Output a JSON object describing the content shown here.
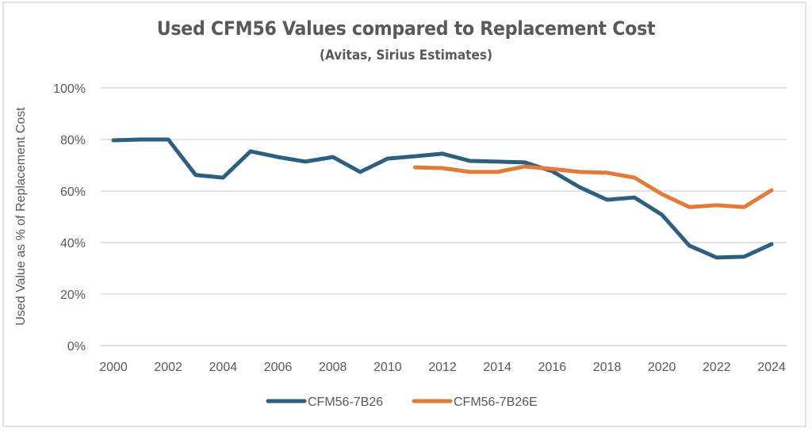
{
  "chart_data": {
    "type": "line",
    "title": "Used CFM56 Values compared to Replacement Cost",
    "subtitle": "(Avitas, Sirius Estimates)",
    "xlabel": "",
    "ylabel": "Used Value as % of Replacement Cost",
    "ylim": [
      0,
      100
    ],
    "y_ticks": [
      0,
      20,
      40,
      60,
      80,
      100
    ],
    "y_tick_labels": [
      "0%",
      "20%",
      "40%",
      "60%",
      "80%",
      "100%"
    ],
    "xlim": [
      2000,
      2024
    ],
    "x_ticks": [
      2000,
      2002,
      2004,
      2006,
      2008,
      2010,
      2012,
      2014,
      2016,
      2018,
      2020,
      2022,
      2024
    ],
    "x_tick_labels": [
      "2000",
      "2002",
      "2004",
      "2006",
      "2008",
      "2010",
      "2012",
      "2014",
      "2016",
      "2018",
      "2020",
      "2022",
      "2024"
    ],
    "grid": "horizontal",
    "legend_position": "bottom",
    "series": [
      {
        "name": "CFM56-7B26",
        "color": "#2e5f80",
        "x": [
          2000,
          2001,
          2002,
          2003,
          2004,
          2005,
          2006,
          2007,
          2008,
          2009,
          2010,
          2011,
          2012,
          2013,
          2014,
          2015,
          2016,
          2017,
          2018,
          2019,
          2020,
          2021,
          2022,
          2023,
          2024
        ],
        "values": [
          79.7,
          80.0,
          80.0,
          66.2,
          65.2,
          75.4,
          73.2,
          71.4,
          73.2,
          67.4,
          72.6,
          73.5,
          74.5,
          71.7,
          71.4,
          71.1,
          67.7,
          61.5,
          56.6,
          57.5,
          50.8,
          38.8,
          34.2,
          34.5,
          39.4
        ]
      },
      {
        "name": "CFM56-7B26E",
        "color": "#e07b3c",
        "x": [
          2011,
          2012,
          2013,
          2014,
          2015,
          2016,
          2017,
          2018,
          2019,
          2020,
          2021,
          2022,
          2023,
          2024
        ],
        "values": [
          69.2,
          68.9,
          67.4,
          67.4,
          69.5,
          68.6,
          67.4,
          67.1,
          65.2,
          58.8,
          53.8,
          54.5,
          53.8,
          60.3
        ]
      }
    ]
  }
}
